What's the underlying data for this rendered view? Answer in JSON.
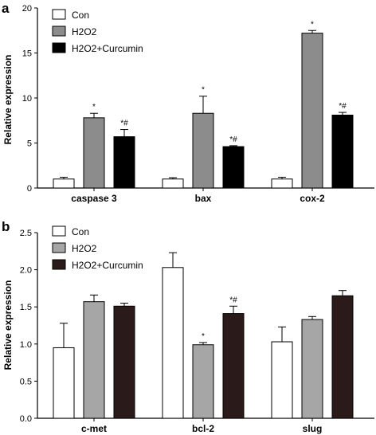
{
  "panels": [
    {
      "letter": "a",
      "ylabel": "Relative expression",
      "ylim": [
        0,
        20
      ],
      "yticks": [
        0,
        5,
        10,
        15,
        20
      ],
      "categories": [
        "caspase 3",
        "bax",
        "cox-2"
      ],
      "legend": [
        "Con",
        "H2O2",
        "H2O2+Curcumin"
      ]
    },
    {
      "letter": "b",
      "ylabel": "Relative expression",
      "ylim": [
        0,
        2.5
      ],
      "yticks": [
        "0.0",
        "0.5",
        "1.0",
        "1.5",
        "2.0",
        "2.5"
      ],
      "categories": [
        "c-met",
        "bcl-2",
        "slug"
      ],
      "legend": [
        "Con",
        "H2O2",
        "H2O2+Curcumin"
      ]
    }
  ],
  "chart_data": [
    {
      "type": "bar",
      "title": "",
      "xlabel": "",
      "ylabel": "Relative expression",
      "ylim": [
        0,
        20
      ],
      "categories": [
        "caspase 3",
        "bax",
        "cox-2"
      ],
      "legend_position": "top-left",
      "grid": false,
      "series": [
        {
          "name": "Con",
          "color": "#ffffff",
          "values": [
            1.0,
            1.0,
            1.0
          ],
          "errors": [
            0.2,
            0.15,
            0.2
          ],
          "annotations": [
            "",
            "",
            ""
          ]
        },
        {
          "name": "H2O2",
          "color": "#8c8c8c",
          "values": [
            7.8,
            8.3,
            17.2
          ],
          "errors": [
            0.5,
            1.9,
            0.3
          ],
          "annotations": [
            "*",
            "*",
            "*"
          ]
        },
        {
          "name": "H2O2+Curcumin",
          "color": "#000000",
          "values": [
            5.7,
            4.6,
            8.1
          ],
          "errors": [
            0.8,
            0.1,
            0.3
          ],
          "annotations": [
            "*#",
            "*#",
            "*#"
          ]
        }
      ]
    },
    {
      "type": "bar",
      "title": "",
      "xlabel": "",
      "ylabel": "Relative expression",
      "ylim": [
        0,
        2.5
      ],
      "categories": [
        "c-met",
        "bcl-2",
        "slug"
      ],
      "legend_position": "top-left",
      "grid": false,
      "series": [
        {
          "name": "Con",
          "color": "#ffffff",
          "values": [
            0.95,
            2.03,
            1.03
          ],
          "errors": [
            0.33,
            0.2,
            0.2
          ],
          "annotations": [
            "",
            "",
            ""
          ]
        },
        {
          "name": "H2O2",
          "color": "#a6a6a6",
          "values": [
            1.57,
            0.99,
            1.33
          ],
          "errors": [
            0.09,
            0.03,
            0.04
          ],
          "annotations": [
            "",
            "*",
            ""
          ]
        },
        {
          "name": "H2O2+Curcumin",
          "color": "#2b1a1a",
          "values": [
            1.51,
            1.41,
            1.65
          ],
          "errors": [
            0.04,
            0.1,
            0.07
          ],
          "annotations": [
            "",
            "*#",
            ""
          ]
        }
      ]
    }
  ]
}
